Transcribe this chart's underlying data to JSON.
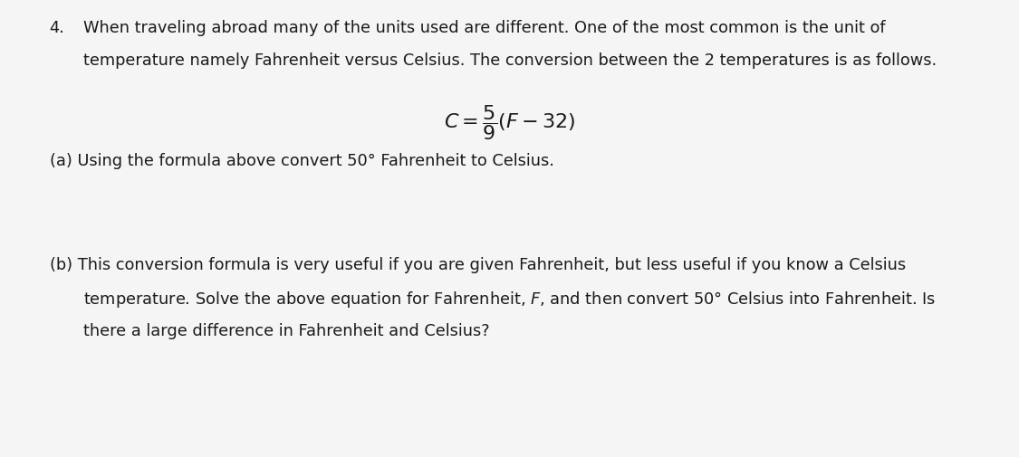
{
  "background_color": "#f5f5f5",
  "text_color": "#1a1a1a",
  "fig_width": 11.25,
  "fig_height": 5.05,
  "font_size_main": 12.8,
  "font_size_formula": 16,
  "line1": "When traveling abroad many of the units used are different. One of the most common is the unit of",
  "line2": "temperature namely Fahrenheit versus Celsius. The conversion between the 2 temperatures is as follows.",
  "formula_latex": "$C = \\dfrac{5}{9}(F-32)$",
  "part_a": "(a) Using the formula above convert 50° Fahrenheit to Celsius.",
  "part_b_line1": "(b) This conversion formula is very useful if you are given Fahrenheit, but less useful if you know a Celsius",
  "part_b_line2": "temperature. Solve the above equation for Fahrenheit, $F$, and then convert 50° Celsius into Fahrenheit. Is",
  "part_b_line3": "there a large difference in Fahrenheit and Celsius?"
}
